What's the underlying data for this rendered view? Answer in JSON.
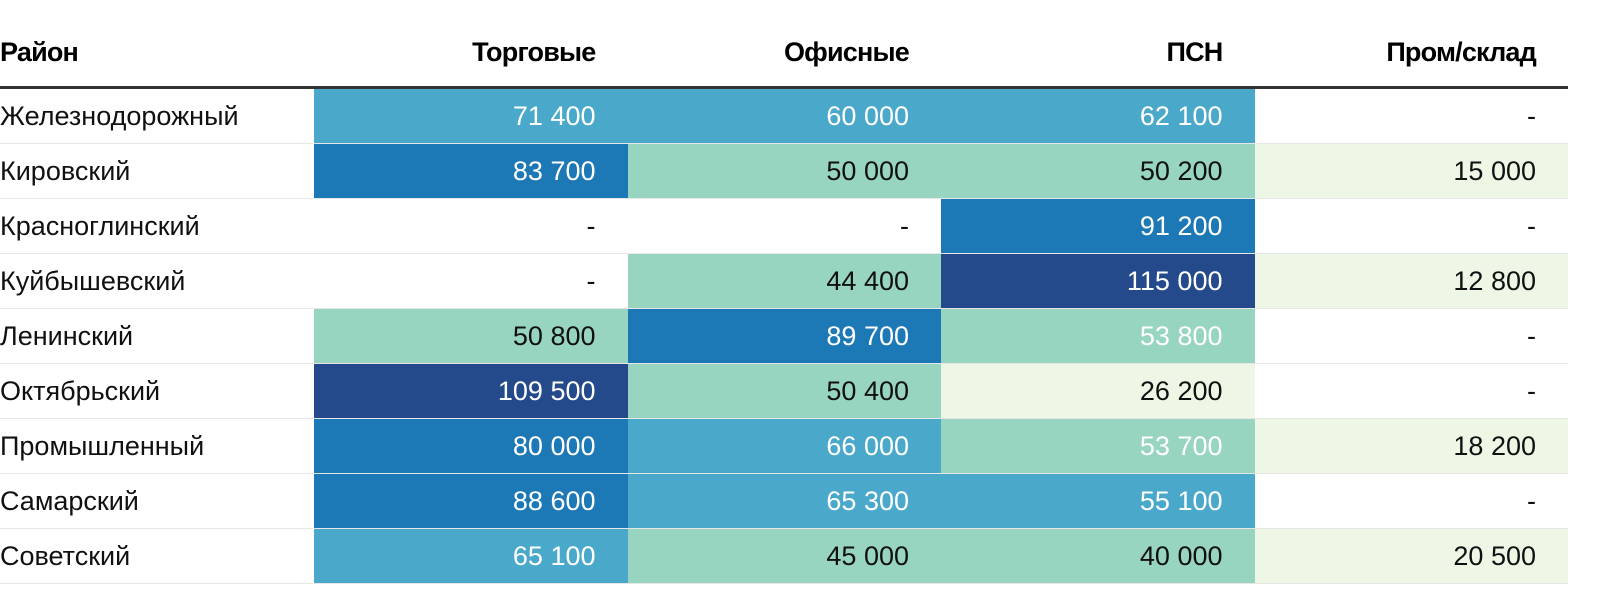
{
  "chart_data": {
    "type": "table",
    "columns": [
      "Район",
      "Торговые",
      "Офисные",
      "ПСН",
      "Пром/склад"
    ],
    "rows": [
      {
        "name": "Железнодорожный",
        "values": [
          "71 400",
          "60 000",
          "62 100",
          "-"
        ]
      },
      {
        "name": "Кировский",
        "values": [
          "83 700",
          "50 000",
          "50 200",
          "15 000"
        ]
      },
      {
        "name": "Красноглинский",
        "values": [
          "-",
          "-",
          "91 200",
          "-"
        ]
      },
      {
        "name": "Куйбышевский",
        "values": [
          "-",
          "44 400",
          "115 000",
          "12 800"
        ]
      },
      {
        "name": "Ленинский",
        "values": [
          "50 800",
          "89 700",
          "53 800",
          "-"
        ]
      },
      {
        "name": "Октябрьский",
        "values": [
          "109 500",
          "50 400",
          "26 200",
          "-"
        ]
      },
      {
        "name": "Промышленный",
        "values": [
          "80 000",
          "66 000",
          "53 700",
          "18 200"
        ]
      },
      {
        "name": "Самарский",
        "values": [
          "88 600",
          "65 300",
          "55 100",
          "-"
        ]
      },
      {
        "name": "Советский",
        "values": [
          "65 100",
          "45 000",
          "40 000",
          "20 500"
        ]
      }
    ],
    "color_scale": {
      "bins": [
        {
          "min": 0,
          "max": 30000,
          "color": "#eef7e6"
        },
        {
          "min": 30000,
          "max": 55000,
          "color": "#97d5c1"
        },
        {
          "min": 55000,
          "max": 80000,
          "color": "#4aa9cb"
        },
        {
          "min": 80000,
          "max": 100000,
          "color": "#1d78b6"
        },
        {
          "min": 100000,
          "max": 1000000,
          "color": "#244a8b"
        }
      ],
      "dark_text_threshold": 53000
    }
  }
}
